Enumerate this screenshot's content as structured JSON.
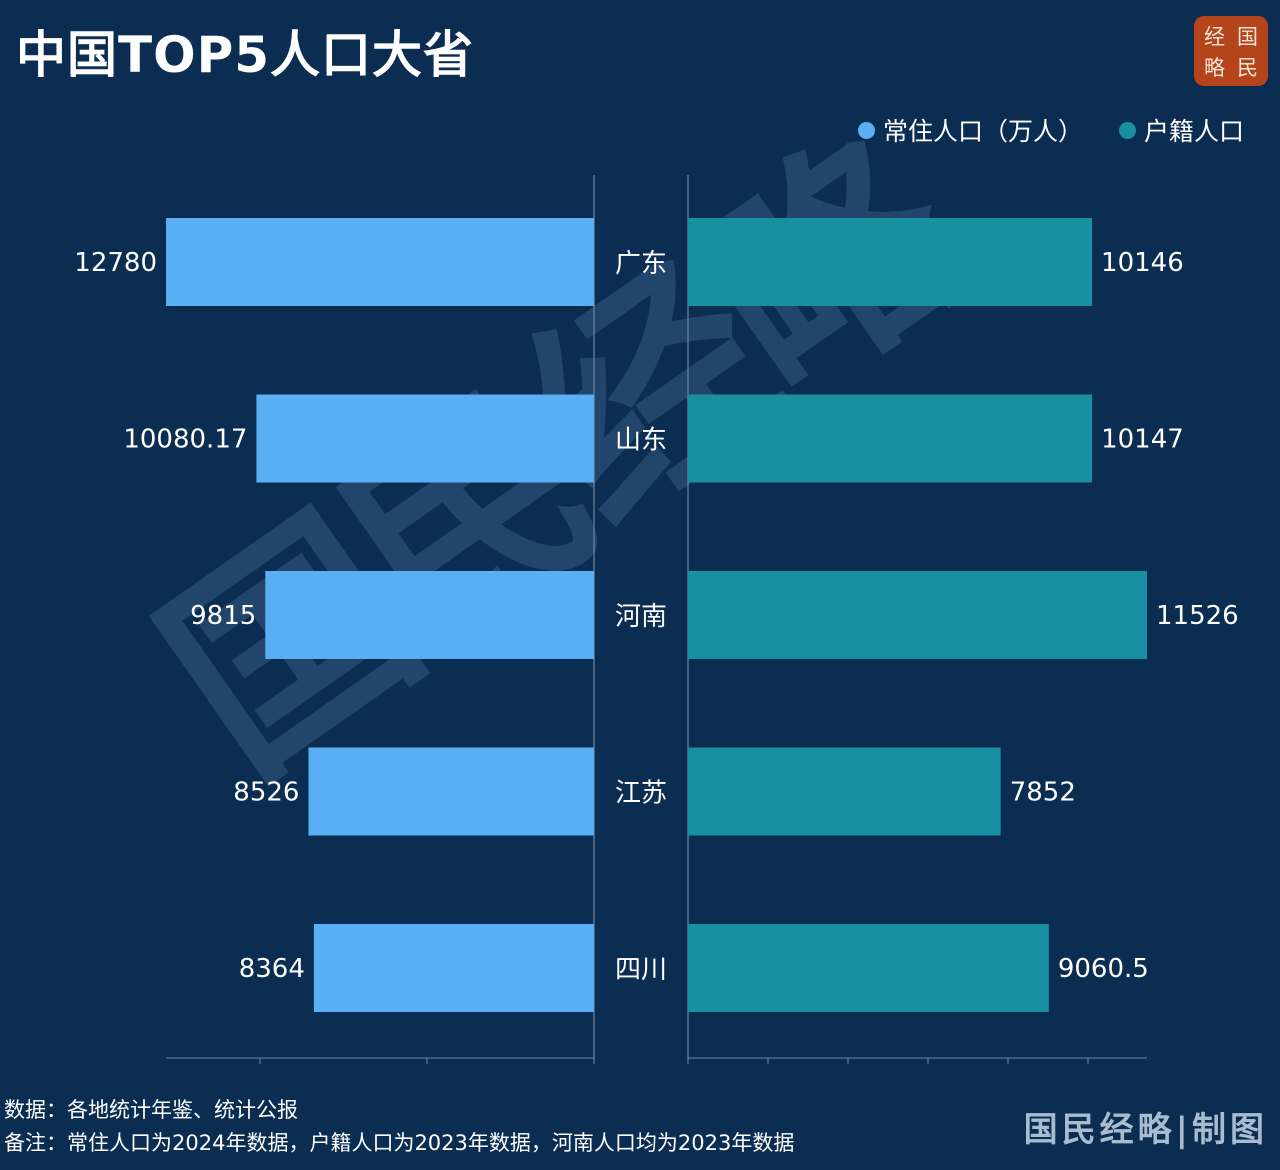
{
  "title": "中国TOP5人口大省",
  "logo": {
    "chars": [
      "经",
      "国",
      "略",
      "民"
    ]
  },
  "legend": [
    {
      "label": "常住人口（万人）",
      "color": "#5aaef3"
    },
    {
      "label": "户籍人口",
      "color": "#198fa3"
    }
  ],
  "watermark": "国民经略",
  "notes": {
    "source": "数据：各地统计年鉴、统计公报",
    "remark": "备注：常住人口为2024年数据，户籍人口为2023年数据，河南人口均为2023年数据"
  },
  "footer_brand": "国民经略|制图",
  "chart_data": {
    "type": "bar",
    "orientation": "horizontal-butterfly",
    "categories": [
      "广东",
      "山东",
      "河南",
      "江苏",
      "四川"
    ],
    "series": [
      {
        "name": "常住人口（万人）",
        "values": [
          12780,
          10080.17,
          9815,
          8526,
          8364
        ],
        "labels": [
          "12780",
          "10080.17",
          "9815",
          "8526",
          "8364"
        ],
        "color": "#5aaef3",
        "side": "left"
      },
      {
        "name": "户籍人口",
        "values": [
          10146,
          10147,
          11526,
          7852,
          9060.5
        ],
        "labels": [
          "10146",
          "10147",
          "11526",
          "7852",
          "9060.5"
        ],
        "color": "#198fa3",
        "side": "right"
      }
    ],
    "grid": false,
    "legend_position": "top-right"
  }
}
